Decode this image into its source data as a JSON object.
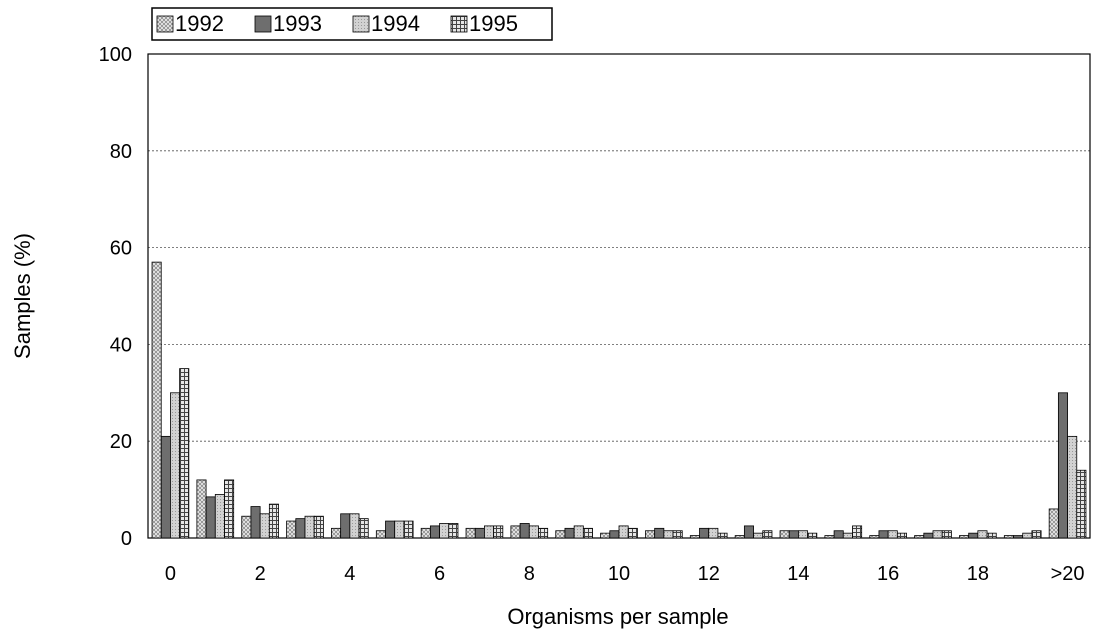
{
  "chart_data": {
    "type": "bar",
    "xlabel": "Organisms per sample",
    "ylabel": "Samples (%)",
    "ylim": [
      0,
      100
    ],
    "yticks": [
      "0",
      "20",
      "40",
      "60",
      "80",
      "100"
    ],
    "categories": [
      "0",
      "1",
      "2",
      "3",
      "4",
      "5",
      "6",
      "7",
      "8",
      "9",
      "10",
      "11",
      "12",
      "13",
      "14",
      "15",
      "16",
      "17",
      "18",
      "19",
      ">20"
    ],
    "category_tick_labels": [
      "0",
      "",
      "2",
      "",
      "4",
      "",
      "6",
      "",
      "8",
      "",
      "10",
      "",
      "12",
      "",
      "14",
      "",
      "16",
      "",
      "18",
      "",
      ">20"
    ],
    "grid": true,
    "legend_position": "top-left",
    "series": [
      {
        "name": "1992",
        "pattern": "crosshatch-light",
        "color": "#d8d8d8",
        "values": [
          57,
          12,
          4.5,
          3.5,
          2,
          1.5,
          2,
          2,
          2.5,
          1.5,
          1,
          1.5,
          0.5,
          0.5,
          1.5,
          0.5,
          0.5,
          0.5,
          0.5,
          0.5,
          6
        ]
      },
      {
        "name": "1993",
        "pattern": "solid-dark",
        "color": "#6e6e6e",
        "values": [
          21,
          8.5,
          6.5,
          4,
          5,
          3.5,
          2.5,
          2,
          3,
          2,
          1.5,
          2,
          2,
          2.5,
          1.5,
          1.5,
          1.5,
          1,
          1,
          0.5,
          30
        ]
      },
      {
        "name": "1994",
        "pattern": "dotted-light",
        "color": "#b4b4b4",
        "values": [
          30,
          9,
          5,
          4.5,
          5,
          3.5,
          3,
          2.5,
          2.5,
          2.5,
          2.5,
          1.5,
          2,
          1,
          1.5,
          1,
          1.5,
          1.5,
          1.5,
          1,
          21
        ]
      },
      {
        "name": "1995",
        "pattern": "grid-dark",
        "color": "#9a9a9a",
        "values": [
          35,
          12,
          7,
          4.5,
          4,
          3.5,
          3,
          2.5,
          2,
          2,
          2,
          1.5,
          1,
          1.5,
          1,
          2.5,
          1,
          1.5,
          1,
          1.5,
          14
        ]
      }
    ]
  }
}
